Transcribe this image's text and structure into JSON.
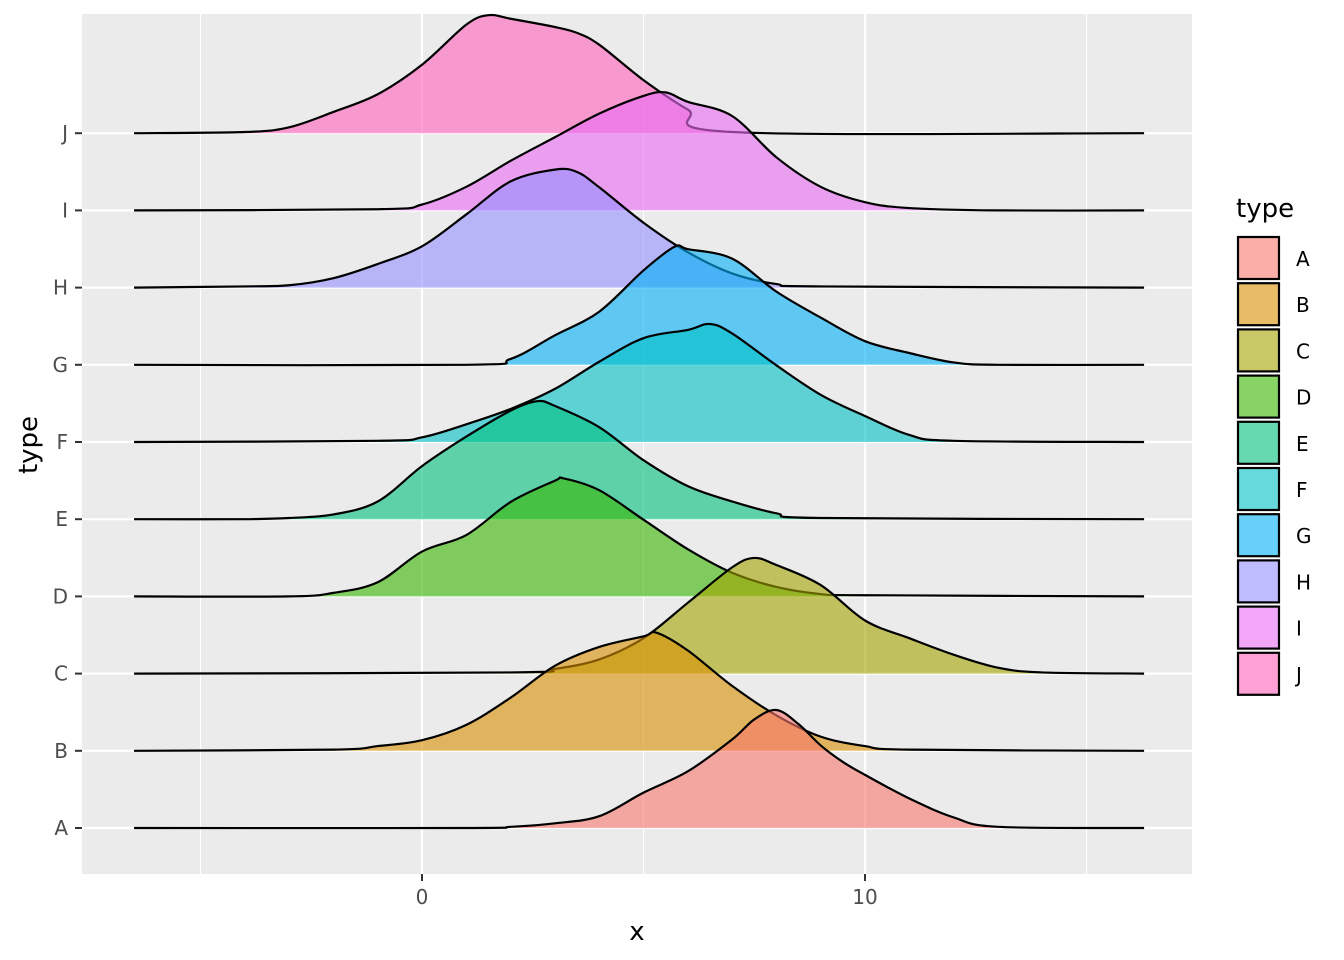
{
  "chart_data": {
    "type": "ridgeline",
    "title": "",
    "xlabel": "x",
    "ylabel": "type",
    "xlim": [
      -7.6,
      17.5
    ],
    "x_ticks": [
      0,
      10
    ],
    "x_tick_labels": [
      "0",
      "10"
    ],
    "categories": [
      "A",
      "B",
      "C",
      "D",
      "E",
      "F",
      "G",
      "H",
      "I",
      "J"
    ],
    "legend": {
      "title": "type",
      "position": "right",
      "items": [
        "A",
        "B",
        "C",
        "D",
        "E",
        "F",
        "G",
        "H",
        "I",
        "J"
      ]
    },
    "colors": {
      "A": "#F8766D",
      "B": "#D89000",
      "C": "#A3A500",
      "D": "#39B600",
      "E": "#00BF7D",
      "F": "#00BFC4",
      "G": "#00B0F6",
      "H": "#9590FF",
      "I": "#E76BF3",
      "J": "#FF62BC"
    },
    "fill_alpha": 0.6,
    "panel_background": "#EBEBEB",
    "grid": true,
    "series": [
      {
        "name": "A",
        "x": [
          -6.5,
          1,
          2,
          3,
          4,
          5,
          6,
          7,
          7.5,
          8,
          8.5,
          9,
          9.5,
          10,
          11,
          12,
          13,
          16.3
        ],
        "density": [
          0,
          0,
          0.01,
          0.04,
          0.1,
          0.3,
          0.48,
          0.75,
          0.92,
          1.0,
          0.88,
          0.7,
          0.56,
          0.45,
          0.25,
          0.09,
          0.01,
          0
        ]
      },
      {
        "name": "B",
        "x": [
          -6.5,
          -2,
          -1,
          0,
          1,
          2,
          3,
          4,
          5,
          5.3,
          6,
          7,
          8,
          9,
          10,
          11,
          16.3
        ],
        "density": [
          0,
          0.01,
          0.04,
          0.09,
          0.22,
          0.45,
          0.72,
          0.88,
          0.97,
          1.0,
          0.85,
          0.55,
          0.3,
          0.12,
          0.04,
          0.01,
          0
        ]
      },
      {
        "name": "C",
        "x": [
          -6.5,
          2,
          3,
          4,
          5,
          6,
          7,
          7.5,
          8,
          9,
          10,
          11,
          12,
          13,
          14,
          16.3
        ],
        "density": [
          0,
          0.01,
          0.04,
          0.12,
          0.3,
          0.6,
          0.9,
          0.98,
          0.92,
          0.75,
          0.45,
          0.3,
          0.16,
          0.05,
          0.01,
          0
        ]
      },
      {
        "name": "D",
        "x": [
          -6.5,
          -3,
          -2,
          -1,
          0,
          1,
          2,
          3,
          3.2,
          4,
          5,
          6,
          7,
          8,
          9,
          10,
          16.3
        ],
        "density": [
          0,
          0,
          0.03,
          0.12,
          0.38,
          0.52,
          0.8,
          0.98,
          1.0,
          0.9,
          0.65,
          0.4,
          0.2,
          0.08,
          0.02,
          0.01,
          0
        ]
      },
      {
        "name": "E",
        "x": [
          -6.5,
          -4,
          -3,
          -2,
          -1,
          0,
          1,
          2,
          2.6,
          3,
          4,
          5,
          6,
          7,
          8,
          9,
          16.3
        ],
        "density": [
          0,
          0,
          0.01,
          0.04,
          0.15,
          0.45,
          0.7,
          0.92,
          1.0,
          0.96,
          0.78,
          0.5,
          0.28,
          0.15,
          0.05,
          0.01,
          0
        ]
      },
      {
        "name": "F",
        "x": [
          -6.5,
          -1,
          0,
          1,
          2,
          3,
          4,
          5,
          6,
          6.5,
          7,
          8,
          9,
          10,
          11,
          12,
          16.3
        ],
        "density": [
          0,
          0.01,
          0.04,
          0.15,
          0.28,
          0.45,
          0.68,
          0.88,
          0.95,
          1.0,
          0.92,
          0.65,
          0.4,
          0.22,
          0.06,
          0.01,
          0
        ]
      },
      {
        "name": "G",
        "x": [
          -6.5,
          1,
          2,
          3,
          4,
          5,
          5.7,
          6,
          7,
          8,
          9,
          10,
          11,
          12,
          13,
          16.3
        ],
        "density": [
          0,
          0,
          0.05,
          0.25,
          0.45,
          0.8,
          1.0,
          0.98,
          0.9,
          0.62,
          0.4,
          0.2,
          0.1,
          0.02,
          0,
          0
        ]
      },
      {
        "name": "H",
        "x": [
          -6.5,
          -4,
          -3,
          -2,
          -1,
          0,
          1,
          2,
          3,
          3.5,
          4,
          5,
          6,
          7,
          8,
          9,
          16.3
        ],
        "density": [
          0,
          0.01,
          0.02,
          0.08,
          0.2,
          0.35,
          0.62,
          0.9,
          1.0,
          0.98,
          0.85,
          0.55,
          0.3,
          0.12,
          0.03,
          0.01,
          0
        ]
      },
      {
        "name": "I",
        "x": [
          -6.5,
          -1,
          0,
          1,
          2,
          3,
          4,
          5,
          5.5,
          6,
          7,
          8,
          9,
          10,
          11,
          13,
          16.3
        ],
        "density": [
          0,
          0.01,
          0.05,
          0.2,
          0.42,
          0.62,
          0.82,
          0.97,
          1.0,
          0.92,
          0.8,
          0.45,
          0.2,
          0.07,
          0.02,
          0,
          0
        ]
      },
      {
        "name": "J",
        "x": [
          -6.5,
          -4,
          -3,
          -2,
          -1,
          0,
          1,
          1.5,
          2,
          3,
          3.5,
          4,
          5,
          6,
          7,
          16.3
        ],
        "density": [
          0,
          0.01,
          0.05,
          0.18,
          0.33,
          0.58,
          0.92,
          1.0,
          0.97,
          0.9,
          0.85,
          0.75,
          0.45,
          0.2,
          0.01,
          0
        ]
      }
    ]
  }
}
